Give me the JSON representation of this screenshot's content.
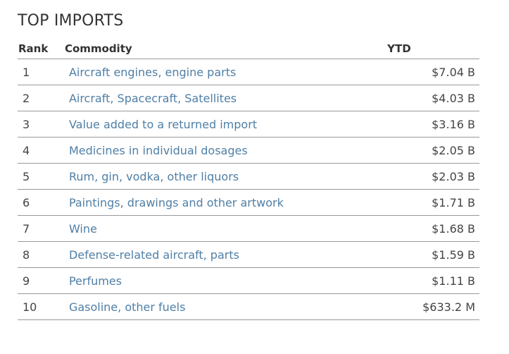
{
  "title": "TOP IMPORTS",
  "headers": {
    "rank": "Rank",
    "commodity": "Commodity",
    "ytd": "YTD"
  },
  "rows": [
    {
      "rank": "1",
      "commodity": "Aircraft engines, engine parts",
      "ytd": "$7.04 B"
    },
    {
      "rank": "2",
      "commodity": "Aircraft, Spacecraft, Satellites",
      "ytd": "$4.03 B"
    },
    {
      "rank": "3",
      "commodity": "Value added to a returned import",
      "ytd": "$3.16 B"
    },
    {
      "rank": "4",
      "commodity": "Medicines in individual dosages",
      "ytd": "$2.05 B"
    },
    {
      "rank": "5",
      "commodity": "Rum, gin, vodka, other liquors",
      "ytd": "$2.03 B"
    },
    {
      "rank": "6",
      "commodity": "Paintings, drawings and other artwork",
      "ytd": "$1.71 B"
    },
    {
      "rank": "7",
      "commodity": "Wine",
      "ytd": "$1.68 B"
    },
    {
      "rank": "8",
      "commodity": "Defense-related aircraft, parts",
      "ytd": "$1.59 B"
    },
    {
      "rank": "9",
      "commodity": "Perfumes",
      "ytd": "$1.11 B"
    },
    {
      "rank": "10",
      "commodity": "Gasoline, other fuels",
      "ytd": "$633.2 M"
    }
  ],
  "colors": {
    "link": "#4f7fa6",
    "text": "#333333",
    "rule": "#999999"
  }
}
